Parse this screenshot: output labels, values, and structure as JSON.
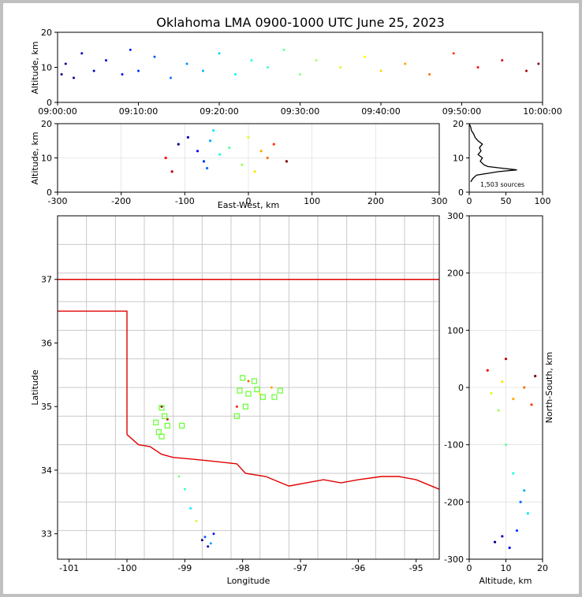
{
  "figure": {
    "title": "Oklahoma LMA 0900-1000 UTC June 25, 2023",
    "source_count_label": "1,503 sources"
  },
  "colors": {
    "county": "#c9c9c9",
    "state_border": "#e00000",
    "station": "#66ff33"
  },
  "chart_data": [
    {
      "type": "scatter",
      "name": "time-height",
      "xlabel": "",
      "ylabel": "Altitude, km",
      "xlim": [
        "09:00:00",
        "10:00:00"
      ],
      "ylim": [
        0,
        20
      ],
      "xticks": [
        "09:00:00",
        "09:10:00",
        "09:20:00",
        "09:30:00",
        "09:40:00",
        "09:50:00",
        "10:00:00"
      ],
      "yticks": [
        0,
        10,
        20
      ],
      "color_by": "time (blue to red)",
      "points": [
        {
          "t": "09:00:30",
          "alt": 8
        },
        {
          "t": "09:01:00",
          "alt": 11
        },
        {
          "t": "09:02:00",
          "alt": 7
        },
        {
          "t": "09:03:00",
          "alt": 14
        },
        {
          "t": "09:04:30",
          "alt": 9
        },
        {
          "t": "09:06:00",
          "alt": 12
        },
        {
          "t": "09:08:00",
          "alt": 8
        },
        {
          "t": "09:09:00",
          "alt": 15
        },
        {
          "t": "09:10:00",
          "alt": 9
        },
        {
          "t": "09:12:00",
          "alt": 13
        },
        {
          "t": "09:14:00",
          "alt": 7
        },
        {
          "t": "09:16:00",
          "alt": 11
        },
        {
          "t": "09:18:00",
          "alt": 9
        },
        {
          "t": "09:20:00",
          "alt": 14
        },
        {
          "t": "09:22:00",
          "alt": 8
        },
        {
          "t": "09:24:00",
          "alt": 12
        },
        {
          "t": "09:26:00",
          "alt": 10
        },
        {
          "t": "09:28:00",
          "alt": 15
        },
        {
          "t": "09:30:00",
          "alt": 8
        },
        {
          "t": "09:32:00",
          "alt": 12
        },
        {
          "t": "09:35:00",
          "alt": 10
        },
        {
          "t": "09:38:00",
          "alt": 13
        },
        {
          "t": "09:40:00",
          "alt": 9
        },
        {
          "t": "09:43:00",
          "alt": 11
        },
        {
          "t": "09:46:00",
          "alt": 8
        },
        {
          "t": "09:49:00",
          "alt": 14
        },
        {
          "t": "09:52:00",
          "alt": 10
        },
        {
          "t": "09:55:00",
          "alt": 12
        },
        {
          "t": "09:58:00",
          "alt": 9
        },
        {
          "t": "09:59:30",
          "alt": 11
        }
      ]
    },
    {
      "type": "scatter",
      "name": "east-west-height",
      "xlabel": "East-West, km",
      "ylabel": "Altitude, km",
      "xlim": [
        -300,
        300
      ],
      "ylim": [
        0,
        20
      ],
      "xticks": [
        -300,
        -200,
        -100,
        0,
        100,
        200,
        300
      ],
      "yticks": [
        0,
        10,
        20
      ],
      "color_by": "time (blue to red)",
      "points": [
        {
          "x": -110,
          "alt": 14
        },
        {
          "x": -95,
          "alt": 16
        },
        {
          "x": -80,
          "alt": 12
        },
        {
          "x": -70,
          "alt": 9
        },
        {
          "x": -65,
          "alt": 7
        },
        {
          "x": -60,
          "alt": 15
        },
        {
          "x": -55,
          "alt": 18
        },
        {
          "x": -45,
          "alt": 11
        },
        {
          "x": -30,
          "alt": 13
        },
        {
          "x": -10,
          "alt": 8
        },
        {
          "x": 0,
          "alt": 16
        },
        {
          "x": 10,
          "alt": 6
        },
        {
          "x": 20,
          "alt": 12
        },
        {
          "x": 30,
          "alt": 10
        },
        {
          "x": 40,
          "alt": 14
        },
        {
          "x": -130,
          "alt": 10
        },
        {
          "x": -120,
          "alt": 6
        },
        {
          "x": 60,
          "alt": 9
        }
      ]
    },
    {
      "type": "line",
      "name": "altitude-histogram",
      "xlabel": "",
      "ylabel": "",
      "xlim": [
        0,
        100
      ],
      "ylim": [
        0,
        20
      ],
      "xticks": [
        0,
        50,
        100
      ],
      "yticks": [
        0,
        10,
        20
      ],
      "profile": [
        {
          "alt": 3,
          "count": 2
        },
        {
          "alt": 4,
          "count": 5
        },
        {
          "alt": 5,
          "count": 10
        },
        {
          "alt": 6,
          "count": 40
        },
        {
          "alt": 6.5,
          "count": 65
        },
        {
          "alt": 7,
          "count": 45
        },
        {
          "alt": 7.5,
          "count": 25
        },
        {
          "alt": 8,
          "count": 20
        },
        {
          "alt": 9,
          "count": 15
        },
        {
          "alt": 10,
          "count": 18
        },
        {
          "alt": 11,
          "count": 12
        },
        {
          "alt": 12,
          "count": 16
        },
        {
          "alt": 13,
          "count": 14
        },
        {
          "alt": 14,
          "count": 18
        },
        {
          "alt": 15,
          "count": 12
        },
        {
          "alt": 16,
          "count": 8
        },
        {
          "alt": 17,
          "count": 6
        },
        {
          "alt": 18,
          "count": 3
        },
        {
          "alt": 19,
          "count": 2
        },
        {
          "alt": 20,
          "count": 0
        }
      ]
    },
    {
      "type": "scatter",
      "name": "plan-view",
      "xlabel": "Longitude",
      "ylabel": "Latitude",
      "xlim": [
        -101.2,
        -94.6
      ],
      "ylim": [
        32.6,
        38.0
      ],
      "xticks": [
        -101,
        -100,
        -99,
        -98,
        -97,
        -96,
        -95
      ],
      "yticks": [
        33,
        34,
        35,
        36,
        37
      ],
      "color_by": "time (blue to red)",
      "points": [
        {
          "lon": -98.7,
          "lat": 32.9
        },
        {
          "lon": -98.6,
          "lat": 32.8
        },
        {
          "lon": -98.5,
          "lat": 33.0
        },
        {
          "lon": -98.65,
          "lat": 32.95
        },
        {
          "lon": -98.55,
          "lat": 32.85
        },
        {
          "lon": -98.9,
          "lat": 33.4
        },
        {
          "lon": -99.0,
          "lat": 33.7
        },
        {
          "lon": -99.1,
          "lat": 33.9
        },
        {
          "lon": -98.8,
          "lat": 33.2
        },
        {
          "lon": -97.7,
          "lat": 35.2
        },
        {
          "lon": -97.5,
          "lat": 35.3
        },
        {
          "lon": -97.9,
          "lat": 35.4
        },
        {
          "lon": -98.1,
          "lat": 35.0
        },
        {
          "lon": -99.3,
          "lat": 34.8
        },
        {
          "lon": -99.4,
          "lat": 35.0
        }
      ],
      "stations": [
        {
          "lon": -98.0,
          "lat": 35.45
        },
        {
          "lon": -97.8,
          "lat": 35.4
        },
        {
          "lon": -98.05,
          "lat": 35.25
        },
        {
          "lon": -97.9,
          "lat": 35.2
        },
        {
          "lon": -97.65,
          "lat": 35.15
        },
        {
          "lon": -97.45,
          "lat": 35.15
        },
        {
          "lon": -97.35,
          "lat": 35.25
        },
        {
          "lon": -97.95,
          "lat": 35.0
        },
        {
          "lon": -98.1,
          "lat": 34.85
        },
        {
          "lon": -99.4,
          "lat": 34.98
        },
        {
          "lon": -99.35,
          "lat": 34.85
        },
        {
          "lon": -99.5,
          "lat": 34.75
        },
        {
          "lon": -99.3,
          "lat": 34.7
        },
        {
          "lon": -99.45,
          "lat": 34.6
        },
        {
          "lon": -99.4,
          "lat": 34.53
        },
        {
          "lon": -99.05,
          "lat": 34.7
        },
        {
          "lon": -97.75,
          "lat": 35.27
        }
      ]
    },
    {
      "type": "scatter",
      "name": "north-south-height",
      "xlabel": "Altitude, km",
      "ylabel": "North-South, km",
      "xlim": [
        0,
        20
      ],
      "ylim": [
        -300,
        300
      ],
      "xticks": [
        0,
        10,
        20
      ],
      "yticks": [
        -300,
        -200,
        -100,
        0,
        100,
        200,
        300
      ],
      "color_by": "time (blue to red)",
      "points": [
        {
          "alt": 7,
          "ns": -270
        },
        {
          "alt": 9,
          "ns": -260
        },
        {
          "alt": 11,
          "ns": -280
        },
        {
          "alt": 13,
          "ns": -250
        },
        {
          "alt": 14,
          "ns": -200
        },
        {
          "alt": 15,
          "ns": -180
        },
        {
          "alt": 16,
          "ns": -220
        },
        {
          "alt": 12,
          "ns": -150
        },
        {
          "alt": 10,
          "ns": -100
        },
        {
          "alt": 8,
          "ns": -40
        },
        {
          "alt": 6,
          "ns": -10
        },
        {
          "alt": 9,
          "ns": 10
        },
        {
          "alt": 12,
          "ns": -20
        },
        {
          "alt": 15,
          "ns": 0
        },
        {
          "alt": 17,
          "ns": -30
        },
        {
          "alt": 5,
          "ns": 30
        },
        {
          "alt": 10,
          "ns": 50
        },
        {
          "alt": 18,
          "ns": 20
        }
      ]
    }
  ]
}
